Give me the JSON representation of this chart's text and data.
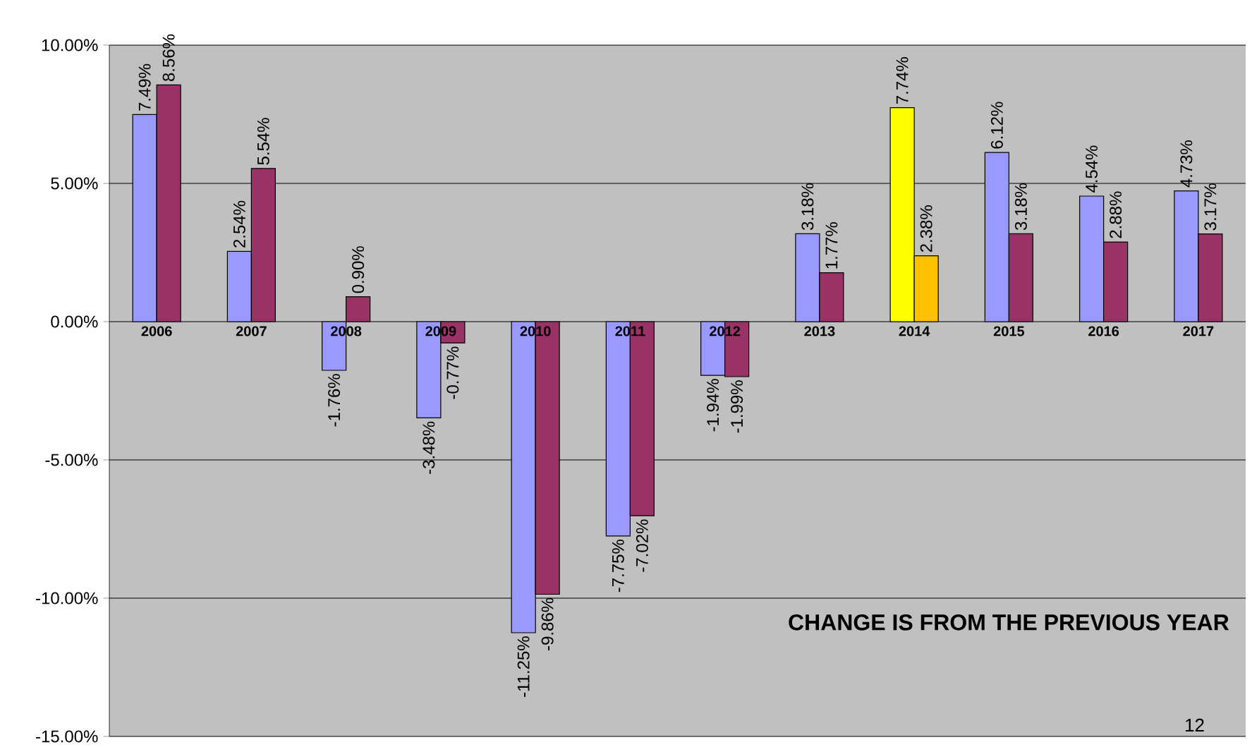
{
  "chart_data": {
    "type": "bar",
    "categories": [
      "2006",
      "2007",
      "2008",
      "2009",
      "2010",
      "2011",
      "2012",
      "2013",
      "2014",
      "2015",
      "2016",
      "2017"
    ],
    "series": [
      {
        "colors": [
          "#9999ff",
          "#9999ff",
          "#9999ff",
          "#9999ff",
          "#9999ff",
          "#9999ff",
          "#9999ff",
          "#9999ff",
          "#ffff00",
          "#9999ff",
          "#9999ff",
          "#9999ff"
        ],
        "values": [
          7.49,
          2.54,
          -1.76,
          -3.48,
          -11.25,
          -7.75,
          -1.94,
          3.18,
          7.74,
          6.12,
          4.54,
          4.73
        ],
        "value_labels": [
          "7.49%",
          "2.54%",
          "-1.76%",
          "-3.48%",
          "-11.25%",
          "-7.75%",
          "-1.94%",
          "3.18%",
          "7.74%",
          "6.12%",
          "4.54%",
          "4.73%"
        ]
      },
      {
        "colors": [
          "#993366",
          "#993366",
          "#993366",
          "#993366",
          "#993366",
          "#993366",
          "#993366",
          "#993366",
          "#ffc000",
          "#993366",
          "#993366",
          "#993366"
        ],
        "values": [
          8.56,
          5.54,
          0.9,
          -0.77,
          -9.86,
          -7.02,
          -1.99,
          1.77,
          2.38,
          3.18,
          2.88,
          3.17
        ],
        "value_labels": [
          "8.56%",
          "5.54%",
          "0.90%",
          "-0.77%",
          "-9.86%",
          "-7.02%",
          "-1.99%",
          "1.77%",
          "2.38%",
          "3.18%",
          "2.88%",
          "3.17%"
        ]
      }
    ],
    "ylim": [
      -15,
      10
    ],
    "yticks": [
      {
        "value": -15,
        "label": "-15.00%"
      },
      {
        "value": -10,
        "label": "-10.00%"
      },
      {
        "value": -5,
        "label": "-5.00%"
      },
      {
        "value": 0,
        "label": "0.00%"
      },
      {
        "value": 5,
        "label": "5.00%"
      },
      {
        "value": 10,
        "label": "10.00%"
      }
    ],
    "grid": "y",
    "annotations": [
      "CHANGE IS FROM THE PREVIOUS YEAR",
      "12"
    ]
  }
}
